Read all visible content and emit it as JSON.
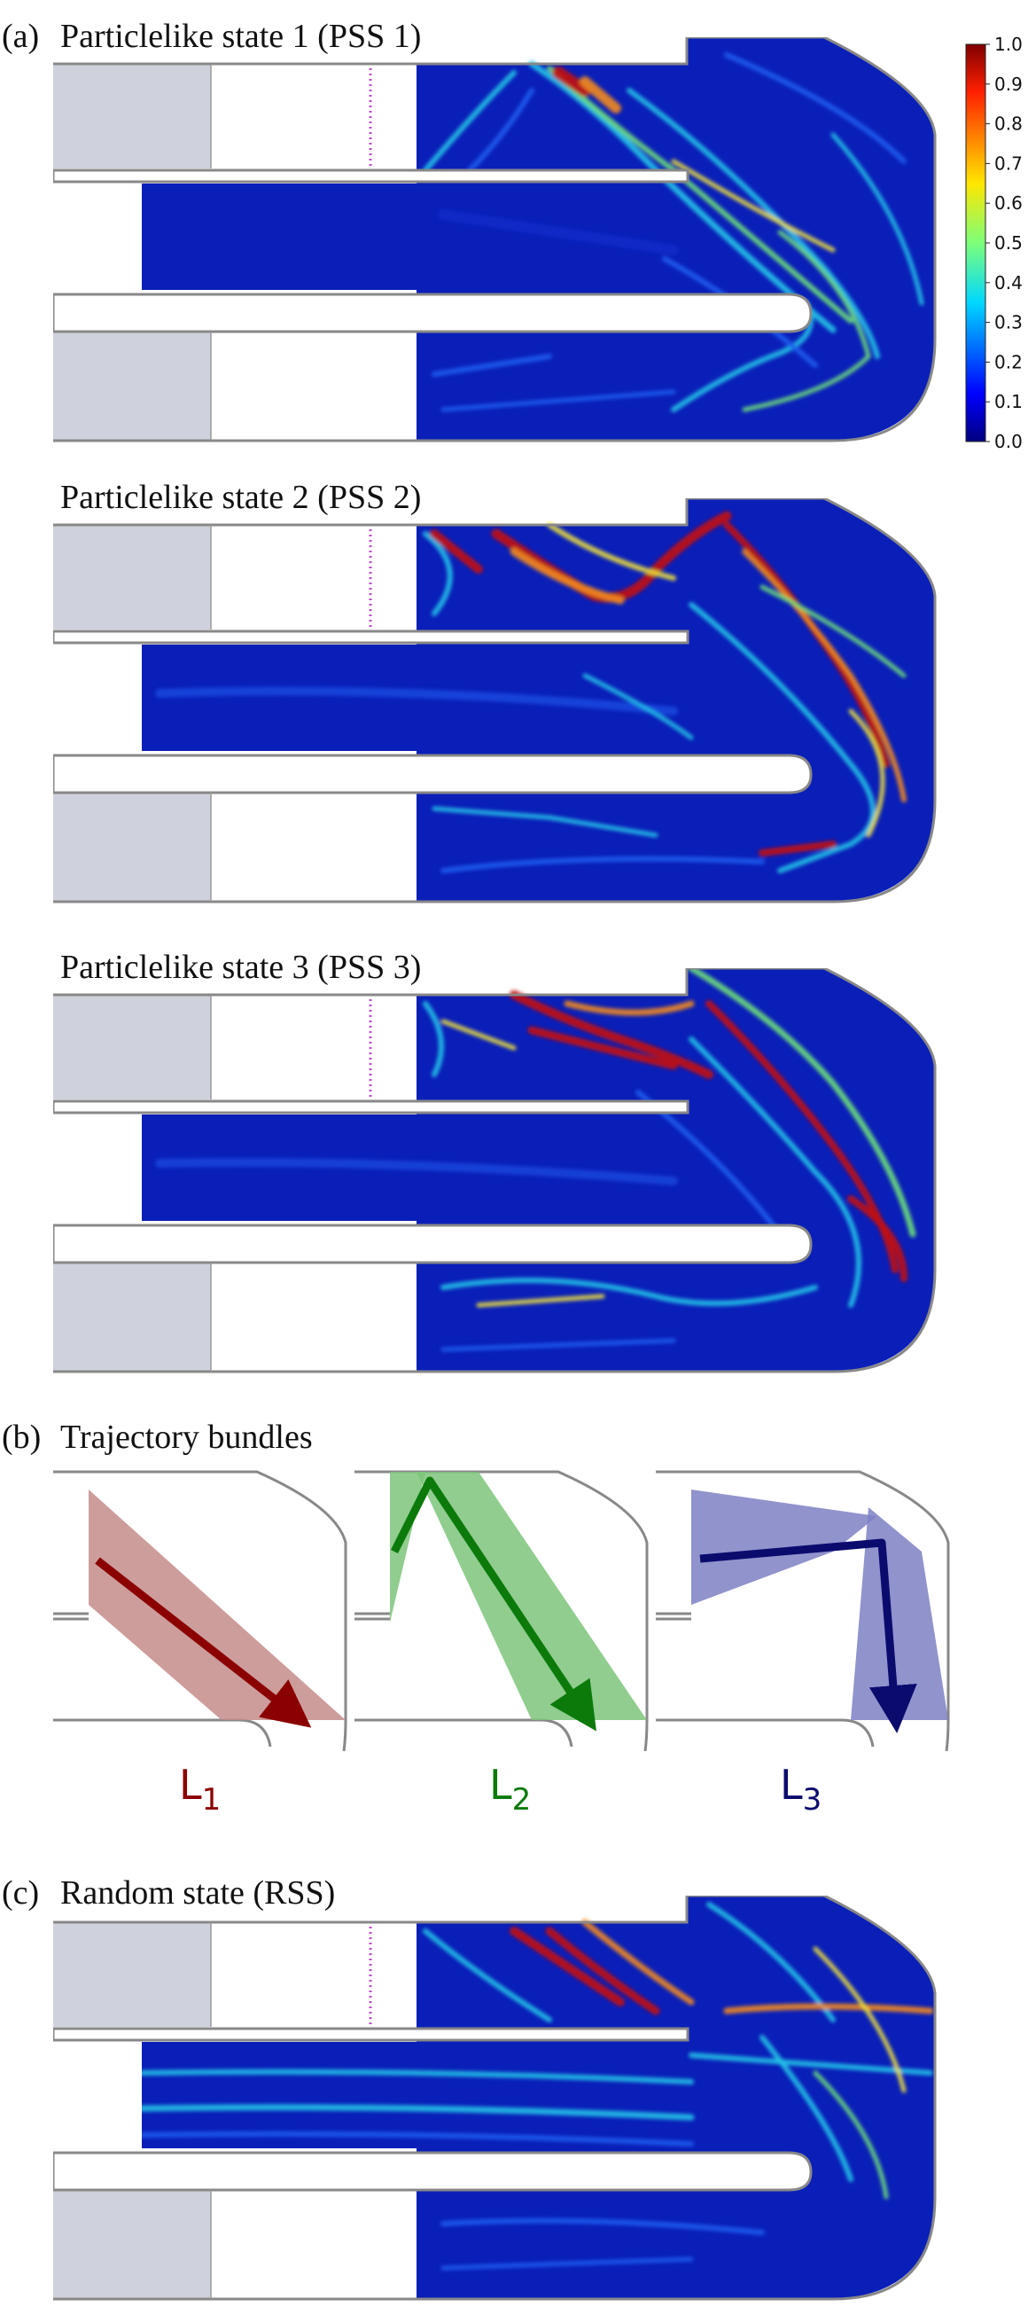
{
  "panels": {
    "a": {
      "letter": "(a)",
      "states": [
        {
          "title": "Particlelike state 1 (PSS 1)"
        },
        {
          "title": "Particlelike state 2 (PSS 2)"
        },
        {
          "title": "Particlelike state 3 (PSS 3)"
        }
      ]
    },
    "b": {
      "letter": "(b)",
      "title": "Trajectory bundles",
      "bundles": [
        {
          "label": "L",
          "sub": "1",
          "color": "#8b0000",
          "band": "#c48c8a"
        },
        {
          "label": "L",
          "sub": "2",
          "color": "#0b7a0b",
          "band": "#7dc47a"
        },
        {
          "label": "L",
          "sub": "3",
          "color": "#0b0b6e",
          "band": "#7e80c4"
        }
      ]
    },
    "c": {
      "letter": "(c)",
      "title": "Random state (RSS)"
    }
  },
  "colorbar": {
    "ticks": [
      "1.0",
      "0.9",
      "0.8",
      "0.7",
      "0.6",
      "0.5",
      "0.4",
      "0.3",
      "0.2",
      "0.1",
      "0.0"
    ]
  },
  "colors": {
    "cavity_fill": "#0a1fb8",
    "lead_fill": "#cfd2dc",
    "outline": "#888888",
    "dots": "#c04ad0"
  }
}
